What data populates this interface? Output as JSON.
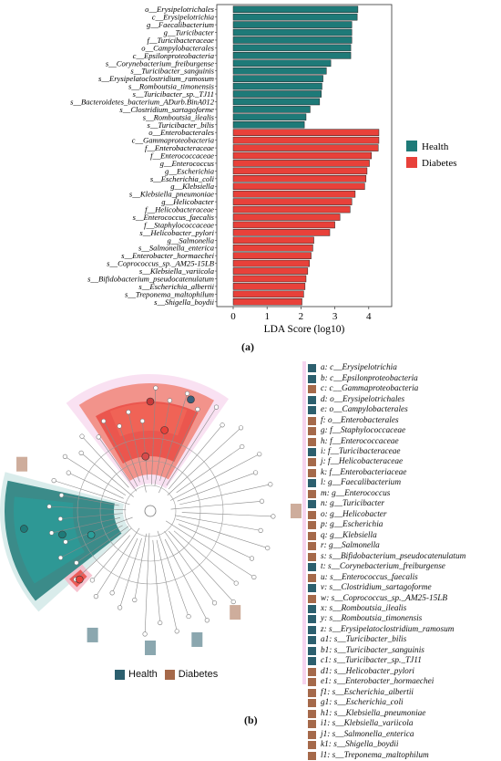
{
  "panel_a_label": "(a)",
  "panel_b_label": "(b)",
  "colors": {
    "health": "#1e7a78",
    "diabetes": "#e8413a",
    "health_dark": "#2c5f6e",
    "diabetes_brown": "#a5694a"
  },
  "chart_data": {
    "type": "bar",
    "orientation": "horizontal",
    "xlabel": "LDA Score (log10)",
    "xlim": [
      0,
      4.5
    ],
    "xticks": [
      0,
      1,
      2,
      3,
      4
    ],
    "legend": {
      "position": "right",
      "entries": [
        "Health",
        "Diabetes"
      ]
    },
    "series": [
      {
        "name": "Health",
        "categories": [
          "o__Erysipelotrichales",
          "c__Erysipelotrichia",
          "g__Faecalibacterium",
          "g__Turicibacter",
          "f__Turicibacteraceae",
          "o__Campylobacterales",
          "c__Epsilonproteobacteria",
          "s__Corynebacterium_freiburgense",
          "s__Turicibacter_sanguinis",
          "s__Erysipelatoclostridium_ramosum",
          "s__Romboutsia_timonensis",
          "s__Turicibacter_sp._TJ11",
          "s__Bacteroidetes_bacterium_ADurb.BinA012",
          "s__Clostridium_sartagoforme",
          "s__Romboutsia_ilealis",
          "s__Turicibacter_bilis"
        ],
        "values": [
          3.68,
          3.66,
          3.5,
          3.5,
          3.5,
          3.47,
          3.47,
          2.88,
          2.75,
          2.65,
          2.62,
          2.6,
          2.55,
          2.27,
          2.15,
          2.1
        ]
      },
      {
        "name": "Diabetes",
        "categories": [
          "o__Enterobacterales",
          "c__Gammaproteobacteria",
          "f__Enterobacteraceae",
          "f__Enterococcaceae",
          "g__Enterococcus",
          "g__Escherichia",
          "s__Escherichia_coli",
          "g__Klebsiella",
          "s__Klebsiella_pneumoniae",
          "g__Helicobacter",
          "f__Helicobacteraceae",
          "s__Enterococcus_faecalis",
          "f__Staphylococcaceae",
          "s__Helicobacter_pylori",
          "g__Salmonella",
          "s__Salmonella_enterica",
          "s__Enterobacter_hormaechei",
          "s__Coprococcus_sp._AM25-15LB",
          "s__Klebsiella_variicola",
          "s__Bifidobacterium_pseudocatenulatum",
          "s__Escherichia_albertii",
          "s__Treponema_maltophilum",
          "s__Shigella_boydii"
        ],
        "values": [
          4.3,
          4.3,
          4.28,
          4.08,
          4.02,
          3.95,
          3.92,
          3.88,
          3.6,
          3.5,
          3.45,
          3.15,
          3.0,
          2.85,
          2.38,
          2.35,
          2.3,
          2.25,
          2.2,
          2.15,
          2.12,
          2.08,
          2.03
        ]
      }
    ]
  },
  "cladogram": {
    "legend_items": [
      {
        "key": "a:",
        "label": "c__Erysipelotrichia",
        "group": "health"
      },
      {
        "key": "b:",
        "label": "c__Epsilonproteobacteria",
        "group": "health"
      },
      {
        "key": "c:",
        "label": "c__Gammaproteobacteria",
        "group": "diabetes"
      },
      {
        "key": "d:",
        "label": "o__Erysipelotrichales",
        "group": "health"
      },
      {
        "key": "e:",
        "label": "o__Campylobacterales",
        "group": "health"
      },
      {
        "key": "f:",
        "label": "o__Enterobacterales",
        "group": "diabetes"
      },
      {
        "key": "g:",
        "label": "f__Staphylococcaceae",
        "group": "diabetes"
      },
      {
        "key": "h:",
        "label": "f__Enterococcaceae",
        "group": "diabetes"
      },
      {
        "key": "i:",
        "label": "f__Turicibacteraceae",
        "group": "health"
      },
      {
        "key": "j:",
        "label": "f__Helicobacteraceae",
        "group": "diabetes"
      },
      {
        "key": "k:",
        "label": "f__Enterobacteriaceae",
        "group": "diabetes"
      },
      {
        "key": "l:",
        "label": "g__Faecalibacterium",
        "group": "health"
      },
      {
        "key": "m:",
        "label": "g__Enterococcus",
        "group": "diabetes"
      },
      {
        "key": "n:",
        "label": "g__Turicibacter",
        "group": "health"
      },
      {
        "key": "o:",
        "label": "g__Helicobacter",
        "group": "diabetes"
      },
      {
        "key": "p:",
        "label": "g__Escherichia",
        "group": "diabetes"
      },
      {
        "key": "q:",
        "label": "g__Klebsiella",
        "group": "diabetes"
      },
      {
        "key": "r:",
        "label": "g__Salmonella",
        "group": "diabetes"
      },
      {
        "key": "s:",
        "label": "s__Bifidobacterium_pseudocatenulatum",
        "group": "diabetes"
      },
      {
        "key": "t:",
        "label": "s__Corynebacterium_freiburgense",
        "group": "health"
      },
      {
        "key": "u:",
        "label": "s__Enterococcus_faecalis",
        "group": "diabetes"
      },
      {
        "key": "v:",
        "label": "s__Clostridium_sartagoforme",
        "group": "health"
      },
      {
        "key": "w:",
        "label": "s__Coprococcus_sp._AM25-15LB",
        "group": "diabetes"
      },
      {
        "key": "x:",
        "label": "s__Romboutsia_ilealis",
        "group": "health"
      },
      {
        "key": "y:",
        "label": "s__Romboutsia_timonensis",
        "group": "health"
      },
      {
        "key": "z:",
        "label": "s__Erysipelatoclostridium_ramosum",
        "group": "health"
      },
      {
        "key": "a1:",
        "label": "s__Turicibacter_bilis",
        "group": "health"
      },
      {
        "key": "b1:",
        "label": "s__Turicibacter_sanguinis",
        "group": "health"
      },
      {
        "key": "c1:",
        "label": "s__Turicibacter_sp._TJ11",
        "group": "health"
      },
      {
        "key": "d1:",
        "label": "s__Helicobacter_pylori",
        "group": "diabetes"
      },
      {
        "key": "e1:",
        "label": "s__Enterobacter_hormaechei",
        "group": "diabetes"
      },
      {
        "key": "f1:",
        "label": "s__Escherichia_albertii",
        "group": "diabetes"
      },
      {
        "key": "g1:",
        "label": "s__Escherichia_coli",
        "group": "diabetes"
      },
      {
        "key": "h1:",
        "label": "s__Klebsiella_pneumoniae",
        "group": "diabetes"
      },
      {
        "key": "i1:",
        "label": "s__Klebsiella_variicola",
        "group": "diabetes"
      },
      {
        "key": "j1:",
        "label": "s__Salmonella_enterica",
        "group": "diabetes"
      },
      {
        "key": "k1:",
        "label": "s__Shigella_boydii",
        "group": "diabetes"
      },
      {
        "key": "l1:",
        "label": "s__Treponema_maltophilum",
        "group": "diabetes"
      }
    ],
    "bottom_legend": [
      "Health",
      "Diabetes"
    ],
    "sector_label": "u"
  }
}
